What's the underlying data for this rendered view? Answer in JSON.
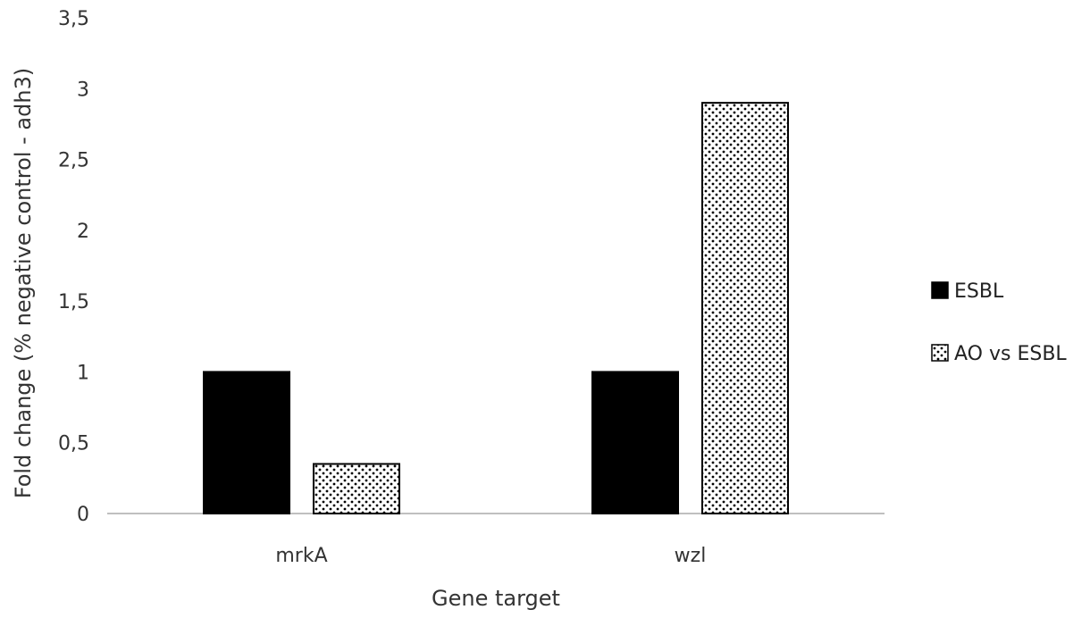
{
  "chart_data": {
    "type": "bar",
    "categories": [
      "mrkA",
      "wzl"
    ],
    "series": [
      {
        "name": "ESBL",
        "values": [
          1,
          1
        ],
        "color": "#000000",
        "pattern": "solid"
      },
      {
        "name": "AO vs ESBL",
        "values": [
          0.35,
          2.9
        ],
        "color": "#000000",
        "pattern": "dotted"
      }
    ],
    "xlabel": "Gene target",
    "ylabel": "Fold change (% negative control - adh3)",
    "ylim": [
      0,
      3.5
    ],
    "yticks": [
      "0",
      "0,5",
      "1",
      "1,5",
      "2",
      "2,5",
      "3",
      "3,5"
    ],
    "grid": false,
    "legend_position": "right"
  }
}
